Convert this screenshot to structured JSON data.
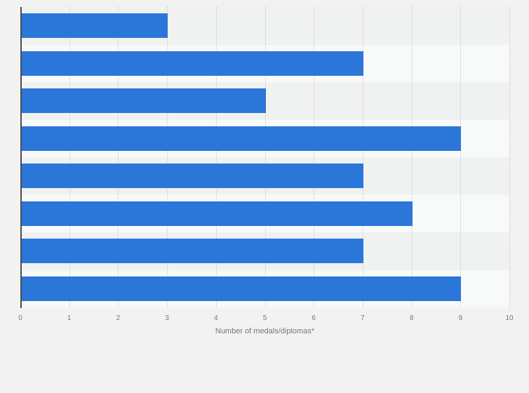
{
  "chart_data": {
    "type": "bar",
    "orientation": "horizontal",
    "values": [
      3,
      7,
      5,
      9,
      7,
      8,
      7,
      9
    ],
    "title": "",
    "xlabel": "Number of medals/diplomas*",
    "ylabel": "",
    "xlim": [
      0,
      10
    ],
    "xticks": [
      "0",
      "1",
      "2",
      "3",
      "4",
      "5",
      "6",
      "7",
      "8",
      "9",
      "10"
    ],
    "grid": "vertical-dotted",
    "legend": "none",
    "category_labels_visible": false,
    "colors": {
      "bar": "#2b76d9",
      "stripe_dark": "#f0f1f1",
      "stripe_light": "#f8f9f9",
      "page_background": "#f2f2f2",
      "gridline": "#c9c9c9",
      "axis_line": "#4d4d4d",
      "tick_text": "#767676",
      "axis_label_text": "#767676"
    }
  }
}
